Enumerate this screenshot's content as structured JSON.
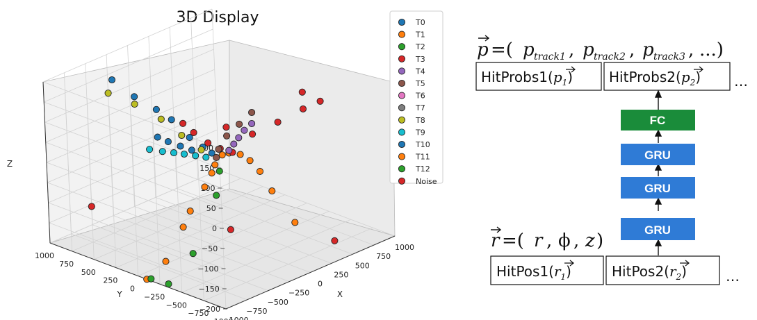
{
  "chart_data": {
    "type": "scatter",
    "title": "3D Display",
    "xlabel": "X",
    "ylabel": "Y",
    "zlabel": "Z",
    "x_ticks": [
      "1000",
      "750",
      "500",
      "250",
      "0",
      "−250",
      "−500",
      "−750",
      "−1000"
    ],
    "y_ticks": [
      "1000",
      "750",
      "500",
      "250",
      "0",
      "−250",
      "−500",
      "−750",
      "−1000"
    ],
    "z_ticks": [
      "200",
      "150",
      "100",
      "50",
      "0",
      "−50",
      "−100",
      "−150",
      "−200"
    ],
    "legend_placement": "right",
    "series": [
      {
        "name": "T0",
        "color": "#1f77b4",
        "points": [
          [
            -300,
            900,
            150
          ],
          [
            -250,
            700,
            120
          ],
          [
            -200,
            500,
            100
          ],
          [
            -150,
            380,
            80
          ],
          [
            -80,
            250,
            40
          ],
          [
            -30,
            150,
            20
          ],
          [
            0,
            80,
            8
          ]
        ]
      },
      {
        "name": "T1",
        "color": "#ff7f0e",
        "points": [
          [
            650,
            -200,
            -200
          ],
          [
            520,
            -80,
            -120
          ],
          [
            450,
            -20,
            -70
          ],
          [
            380,
            20,
            -40
          ],
          [
            300,
            50,
            -20
          ],
          [
            200,
            80,
            -10
          ],
          [
            100,
            60,
            -4
          ]
        ]
      },
      {
        "name": "T2",
        "color": "#2ca02c",
        "points": [
          [
            -950,
            -300,
            -200
          ],
          [
            -600,
            -250,
            -160
          ],
          [
            -200,
            -150,
            -60
          ],
          [
            -60,
            -60,
            -20
          ]
        ]
      },
      {
        "name": "T3",
        "color": "#d62728",
        "points": [
          [
            -200,
            200,
            90
          ],
          [
            -100,
            180,
            60
          ],
          [
            0,
            120,
            30
          ],
          [
            100,
            80,
            10
          ],
          [
            200,
            40,
            -5
          ]
        ]
      },
      {
        "name": "T4",
        "color": "#9467bd",
        "points": [
          [
            700,
            300,
            0
          ],
          [
            560,
            250,
            0
          ],
          [
            420,
            180,
            0
          ],
          [
            300,
            120,
            0
          ],
          [
            180,
            60,
            0
          ]
        ]
      },
      {
        "name": "T5",
        "color": "#8c564b",
        "points": [
          [
            -300,
            -700,
            200
          ],
          [
            -250,
            -500,
            150
          ],
          [
            -200,
            -300,
            100
          ],
          [
            -150,
            -150,
            50
          ],
          [
            -80,
            -50,
            15
          ]
        ]
      },
      {
        "name": "T6",
        "color": "#e377c2",
        "points": []
      },
      {
        "name": "T7",
        "color": "#7f7f7f",
        "points": []
      },
      {
        "name": "T8",
        "color": "#bcbd22",
        "points": [
          [
            -400,
            850,
            130
          ],
          [
            -300,
            650,
            110
          ],
          [
            -200,
            450,
            80
          ],
          [
            -120,
            300,
            45
          ],
          [
            -50,
            150,
            15
          ]
        ]
      },
      {
        "name": "T9",
        "color": "#17becf",
        "points": [
          [
            -300,
            500,
            10
          ],
          [
            -230,
            420,
            5
          ],
          [
            -170,
            350,
            2
          ],
          [
            -120,
            280,
            0
          ],
          [
            -70,
            200,
            -2
          ],
          [
            -30,
            120,
            -3
          ]
        ]
      },
      {
        "name": "T10",
        "color": "#1f77b4",
        "points": [
          [
            -250,
            450,
            40
          ],
          [
            -200,
            380,
            30
          ],
          [
            -140,
            300,
            20
          ],
          [
            -90,
            220,
            12
          ]
        ]
      },
      {
        "name": "T11",
        "color": "#ff7f0e",
        "points": [
          [
            -1000,
            -100,
            -200
          ],
          [
            -750,
            -80,
            -180
          ],
          [
            -500,
            -50,
            -120
          ],
          [
            -400,
            -40,
            -90
          ],
          [
            -200,
            -20,
            -50
          ],
          [
            -100,
            -10,
            -25
          ],
          [
            -50,
            0,
            -10
          ]
        ]
      },
      {
        "name": "T12",
        "color": "#2ca02c",
        "points": [
          [
            -1000,
            -150,
            -195
          ]
        ]
      },
      {
        "name": "Noise",
        "color": "#d62728",
        "points": [
          [
            -700,
            800,
            -120
          ],
          [
            600,
            -700,
            -200
          ],
          [
            300,
            -900,
            190
          ],
          [
            500,
            -500,
            120
          ],
          [
            800,
            -200,
            110
          ],
          [
            -100,
            -200,
            -150
          ],
          [
            400,
            -300,
            80
          ],
          [
            200,
            -200,
            60
          ],
          [
            100,
            0,
            70
          ]
        ]
      }
    ]
  },
  "diagram": {
    "p_label": "p",
    "p_components": [
      "p",
      "track1",
      "p",
      "track2",
      "p",
      "track3",
      "...)"
    ],
    "hitprobs": [
      "HitProbs1(",
      "p",
      "1",
      ")",
      "HitProbs2(",
      "p",
      "2",
      ")"
    ],
    "ellipsis": "…",
    "blocks": [
      {
        "label": "FC",
        "color": "#1a8c3a"
      },
      {
        "label": "GRU",
        "color": "#2f7bd6"
      },
      {
        "label": "GRU",
        "color": "#2f7bd6"
      },
      {
        "label": "GRU",
        "color": "#2f7bd6"
      }
    ],
    "r_label": "r",
    "r_components": [
      "r",
      "ϕ",
      "z"
    ],
    "hitpos": [
      "HitPos1(",
      "r",
      "1",
      ")",
      "HitPos2(",
      "r",
      "2",
      ")"
    ]
  }
}
